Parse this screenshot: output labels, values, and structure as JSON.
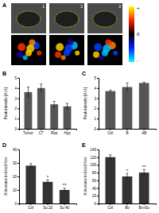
{
  "image_panel": {
    "label": "A",
    "frames": [
      "1",
      "2",
      "3"
    ],
    "colorbar_labels": [
      "+",
      "0",
      "-"
    ]
  },
  "chart_data": [
    {
      "type": "bar",
      "title": "B",
      "y_label": "Peak intensity [A.U.]",
      "categories": [
        "Tumor",
        "CT",
        "Rep",
        "Hyp"
      ],
      "values": [
        3.6,
        4.0,
        2.4,
        2.2
      ],
      "errors": [
        0.5,
        0.4,
        0.3,
        0.3
      ],
      "color": "#555555",
      "ylim": [
        0,
        5
      ],
      "yticks": [
        0,
        1,
        2,
        3,
        4,
        5
      ]
    },
    {
      "type": "bar",
      "title": "C",
      "y_label": "Peak intensity [A.U.]",
      "categories": [
        "Ctrl",
        "B",
        "AB"
      ],
      "values": [
        3.7,
        4.1,
        4.5
      ],
      "errors": [
        0.1,
        0.4,
        0.1
      ],
      "color": "#555555",
      "ylim": [
        0,
        5
      ],
      "yticks": [
        0,
        1,
        2,
        3,
        4,
        5
      ]
    },
    {
      "type": "bar",
      "title": "D",
      "y_label": "% increase in blood flow",
      "categories": [
        "Ctrl",
        "Su 20",
        "Su 40"
      ],
      "values": [
        28,
        16,
        10
      ],
      "errors": [
        1.5,
        1.5,
        1.2
      ],
      "annotations": [
        null,
        "*",
        "**"
      ],
      "color": "#333333",
      "ylim": [
        0,
        40
      ],
      "yticks": [
        0,
        10,
        20,
        30,
        40
      ]
    },
    {
      "type": "bar",
      "title": "E",
      "y_label": "% increase in blood flow",
      "categories": [
        "Ctrl",
        "Bv",
        "Bv+Su"
      ],
      "values": [
        120,
        70,
        80
      ],
      "errors": [
        6,
        8,
        8
      ],
      "annotations": [
        null,
        "*",
        "**"
      ],
      "color": "#333333",
      "ylim": [
        0,
        140
      ],
      "yticks": [
        0,
        20,
        40,
        60,
        80,
        100,
        120,
        140
      ]
    }
  ]
}
